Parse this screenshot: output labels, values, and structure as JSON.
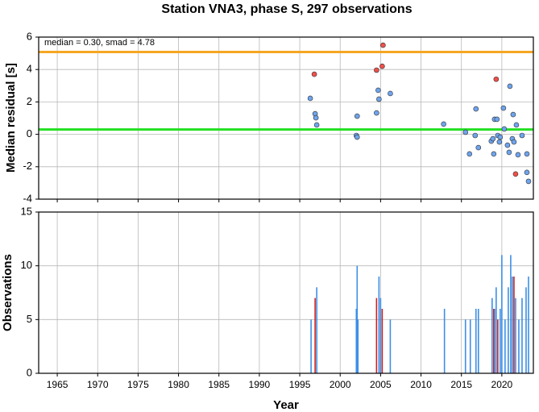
{
  "chart_data": [
    {
      "type": "scatter",
      "title": "Station VNA3, phase S, 297 observations",
      "ylabel": "Median residual [s]",
      "annotation": "median = 0.30, smad = 4.78",
      "xlim": [
        1962.7,
        2023.9
      ],
      "ylim": [
        -4,
        6
      ],
      "yticks": [
        -4,
        -2,
        0,
        2,
        4,
        6
      ],
      "grid": true,
      "hlines": [
        {
          "value": 0.3,
          "color": "#22e022"
        },
        {
          "value": 5.08,
          "color": "#f5a623"
        }
      ],
      "series": [
        {
          "color": "#6ea4ee",
          "x": [
            1996.3,
            1996.9,
            1997.0,
            1997.1,
            2002.1,
            2002.0,
            2002.1,
            2004.5,
            2004.7,
            2004.8,
            2006.2,
            2012.8,
            2015.5,
            2016.0,
            2016.8,
            2016.7,
            2017.1,
            2018.7,
            2018.9,
            2019.0,
            2019.1,
            2019.4,
            2019.5,
            2019.7,
            2019.8,
            2020.2,
            2020.3,
            2020.7,
            2020.9,
            2021.0,
            2021.3,
            2021.4,
            2021.5,
            2021.8,
            2022.0,
            2022.5,
            2023.1,
            2023.1,
            2023.3
          ],
          "values": [
            2.22,
            1.27,
            1.02,
            0.58,
            1.12,
            -0.07,
            -0.17,
            1.32,
            2.72,
            2.17,
            2.52,
            0.63,
            0.13,
            -1.21,
            1.57,
            -0.07,
            -0.82,
            -0.42,
            -0.27,
            -1.21,
            0.93,
            0.93,
            -0.07,
            -0.47,
            -0.17,
            1.62,
            0.33,
            -0.67,
            -1.11,
            2.97,
            -0.27,
            1.22,
            -0.47,
            0.58,
            -1.26,
            -0.07,
            -1.21,
            -2.35,
            -2.9
          ]
        },
        {
          "color": "#f0504a",
          "x": [
            1996.8,
            2004.5,
            2005.2,
            2005.3,
            2019.3,
            2021.7
          ],
          "values": [
            3.71,
            3.96,
            4.2,
            5.5,
            3.4,
            -2.45
          ]
        }
      ]
    },
    {
      "type": "bar",
      "xlabel": "Year",
      "ylabel": "Observations",
      "xlim": [
        1962.7,
        2023.9
      ],
      "xticks": [
        1965,
        1970,
        1975,
        1980,
        1985,
        1990,
        1995,
        2000,
        2005,
        2010,
        2015,
        2020
      ],
      "ylim": [
        0,
        15
      ],
      "yticks": [
        0,
        5,
        10,
        15
      ],
      "grid": true,
      "series": [
        {
          "color": "#3d8fe6",
          "x": [
            1996.4,
            1997.1,
            2002.0,
            2002.1,
            2002.2,
            2004.8,
            2005.0,
            2006.2,
            2012.9,
            2015.5,
            2016.1,
            2016.8,
            2017.1,
            2018.8,
            2019.1,
            2019.3,
            2019.8,
            2020.0,
            2020.4,
            2020.8,
            2021.1,
            2021.3,
            2021.7,
            2022.1,
            2022.5,
            2023.0,
            2023.3
          ],
          "values": [
            5,
            8,
            6,
            10,
            5,
            9,
            7,
            5,
            6,
            5,
            5,
            6,
            6,
            7,
            6,
            8,
            6,
            11,
            5,
            8,
            11,
            9,
            7,
            5,
            7,
            8,
            9
          ]
        },
        {
          "color": "#d02020",
          "x": [
            1996.9,
            2004.5,
            2005.2,
            2019.0,
            2019.5,
            2021.5
          ],
          "values": [
            7,
            7,
            6,
            6,
            5,
            9
          ]
        }
      ]
    }
  ]
}
